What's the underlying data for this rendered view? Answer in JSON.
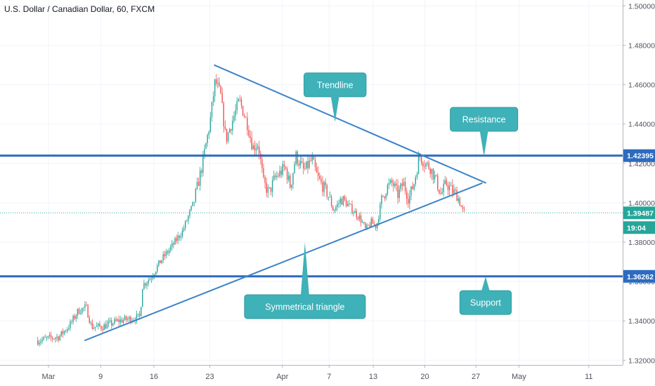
{
  "header": {
    "title": "U.S. Dollar / Canadian Dollar, 60, FXCM"
  },
  "colors": {
    "bull": "#26a69a",
    "bear": "#ef5350",
    "level": "#2c6bbf",
    "trend": "#3a83c8",
    "callout": "#3fb1b8",
    "callout_border": "#2f9aa1",
    "price_line": "#26a69a",
    "axis_text": "#50535e",
    "grid": "#f0f3fa"
  },
  "chart_data": {
    "type": "candlestick",
    "title": "U.S. Dollar / Canadian Dollar, 60, FXCM",
    "ylim": [
      1.315,
      1.505
    ],
    "y_ticks": [
      "1.50000",
      "1.48000",
      "1.46000",
      "1.44000",
      "1.42000",
      "1.40000",
      "1.38000",
      "1.36000",
      "1.34000",
      "1.32000"
    ],
    "x_ticks": [
      "Mar",
      "9",
      "16",
      "23",
      "Apr",
      "7",
      "13",
      "20",
      "27",
      "May",
      "11"
    ],
    "path_points": [
      {
        "d": -2,
        "p": 1.33
      },
      {
        "d": 2,
        "p": 1.332
      },
      {
        "d": 4,
        "p": 1.338
      },
      {
        "d": 5.5,
        "p": 1.345
      },
      {
        "d": 7,
        "p": 1.347
      },
      {
        "d": 8,
        "p": 1.337
      },
      {
        "d": 10,
        "p": 1.337
      },
      {
        "d": 13,
        "p": 1.34
      },
      {
        "d": 17,
        "p": 1.342
      },
      {
        "d": 17.5,
        "p": 1.358
      },
      {
        "d": 19,
        "p": 1.362
      },
      {
        "d": 21,
        "p": 1.371
      },
      {
        "d": 23,
        "p": 1.378
      },
      {
        "d": 25,
        "p": 1.386
      },
      {
        "d": 27,
        "p": 1.4
      },
      {
        "d": 28.5,
        "p": 1.418
      },
      {
        "d": 30,
        "p": 1.44
      },
      {
        "d": 31,
        "p": 1.462
      },
      {
        "d": 32,
        "p": 1.455
      },
      {
        "d": 33,
        "p": 1.432
      },
      {
        "d": 34,
        "p": 1.44
      },
      {
        "d": 35.5,
        "p": 1.452
      },
      {
        "d": 37,
        "p": 1.44
      },
      {
        "d": 38,
        "p": 1.428
      },
      {
        "d": 39,
        "p": 1.43
      },
      {
        "d": 40,
        "p": 1.41
      },
      {
        "d": 41,
        "p": 1.405
      },
      {
        "d": 42,
        "p": 1.412
      },
      {
        "d": 44,
        "p": 1.418
      },
      {
        "d": 45,
        "p": 1.408
      },
      {
        "d": 46,
        "p": 1.424
      },
      {
        "d": 47.5,
        "p": 1.416
      },
      {
        "d": 49,
        "p": 1.422
      },
      {
        "d": 50,
        "p": 1.413
      },
      {
        "d": 52,
        "p": 1.404
      },
      {
        "d": 53,
        "p": 1.396
      },
      {
        "d": 54.5,
        "p": 1.402
      },
      {
        "d": 56,
        "p": 1.398
      },
      {
        "d": 58,
        "p": 1.392
      },
      {
        "d": 59,
        "p": 1.386
      },
      {
        "d": 60,
        "p": 1.39
      },
      {
        "d": 61,
        "p": 1.388
      },
      {
        "d": 62,
        "p": 1.402
      },
      {
        "d": 63,
        "p": 1.408
      },
      {
        "d": 64,
        "p": 1.41
      },
      {
        "d": 65,
        "p": 1.404
      },
      {
        "d": 66,
        "p": 1.41
      },
      {
        "d": 67,
        "p": 1.402
      },
      {
        "d": 68,
        "p": 1.41
      },
      {
        "d": 69,
        "p": 1.424
      },
      {
        "d": 70,
        "p": 1.42
      },
      {
        "d": 71,
        "p": 1.418
      },
      {
        "d": 72,
        "p": 1.412
      },
      {
        "d": 73,
        "p": 1.404
      },
      {
        "d": 74,
        "p": 1.41
      },
      {
        "d": 75,
        "p": 1.406
      },
      {
        "d": 76,
        "p": 1.404
      },
      {
        "d": 77,
        "p": 1.396
      },
      {
        "d": 77.5,
        "p": 1.3949
      }
    ],
    "levels": [
      {
        "name": "resistance",
        "value": 1.42395,
        "label": "1.42395"
      },
      {
        "name": "support",
        "value": 1.36262,
        "label": "1.36262"
      }
    ],
    "current_price": {
      "value": 1.39487,
      "label": "1.39487",
      "countdown": "19:04"
    },
    "trendlines": [
      {
        "name": "descending-trendline",
        "from": {
          "d": 30.8,
          "p": 1.47
        },
        "to": {
          "d": 81.4,
          "p": 1.41
        }
      },
      {
        "name": "ascending-trendline",
        "from": {
          "d": 6.7,
          "p": 1.33
        },
        "to": {
          "d": 80.7,
          "p": 1.41
        }
      }
    ],
    "annotations": [
      {
        "name": "trendline-callout",
        "text": "Trendline",
        "anchor": {
          "d": 53.3,
          "p": 1.441
        },
        "pointer": "down"
      },
      {
        "name": "resistance-callout",
        "text": "Resistance",
        "anchor": {
          "d": 81.0,
          "p": 1.4235
        },
        "pointer": "down"
      },
      {
        "name": "symmetrical-triangle-callout",
        "text": "Symmetrical triangle",
        "anchor": {
          "d": 47.7,
          "p": 1.38
        },
        "pointer": "up"
      },
      {
        "name": "support-callout",
        "text": "Support",
        "anchor": {
          "d": 81.3,
          "p": 1.3625
        },
        "pointer": "up"
      }
    ]
  }
}
